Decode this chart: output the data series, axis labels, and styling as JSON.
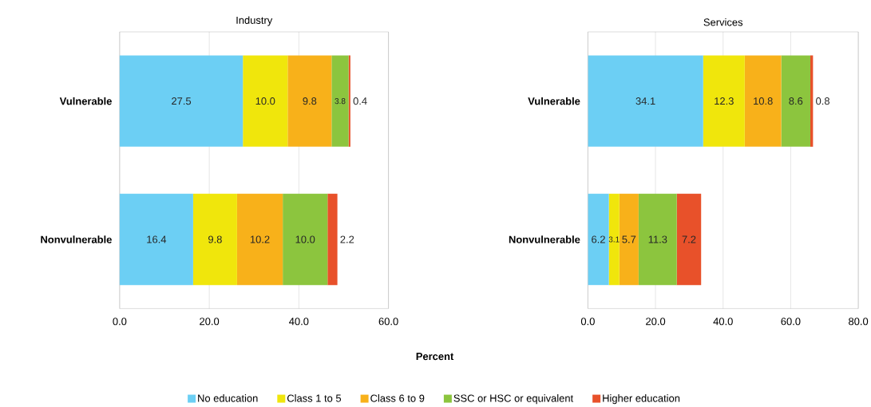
{
  "chart_data": [
    {
      "type": "bar",
      "orientation": "horizontal",
      "stacked": true,
      "title": "Industry",
      "xlabel": "Percent",
      "categories": [
        "Vulnerable",
        "Nonvulnerable"
      ],
      "series": [
        {
          "name": "No education",
          "color": "#6ccff4",
          "values": [
            27.5,
            16.4
          ],
          "value_labels": [
            "27.5",
            "16.4"
          ]
        },
        {
          "name": "Class 1 to 5",
          "color": "#f0e60c",
          "values": [
            10.0,
            9.8
          ],
          "value_labels": [
            "10.0",
            "9.8"
          ]
        },
        {
          "name": "Class 6 to 9",
          "color": "#f8b11a",
          "values": [
            9.8,
            10.2
          ],
          "value_labels": [
            "9.8",
            "10.2"
          ]
        },
        {
          "name": "SSC or HSC or equivalent",
          "color": "#8cc53e",
          "values": [
            3.8,
            10.0
          ],
          "value_labels": [
            "3.8",
            "10.0"
          ]
        },
        {
          "name": "Higher education",
          "color": "#e8512a",
          "values": [
            0.4,
            2.2
          ],
          "value_labels": [
            "0.4",
            "2.2"
          ]
        }
      ],
      "xlim": [
        0,
        60
      ],
      "xticks": [
        {
          "value": 0,
          "label": "0.0"
        },
        {
          "value": 20,
          "label": "20.0"
        },
        {
          "value": 40,
          "label": "40.0"
        },
        {
          "value": 60,
          "label": "60.0"
        }
      ],
      "grid": "x",
      "legend": "bottom"
    },
    {
      "type": "bar",
      "orientation": "horizontal",
      "stacked": true,
      "title": "Services",
      "categories": [
        "Vulnerable",
        "Nonvulnerable"
      ],
      "series": [
        {
          "color": "#6ccff4",
          "values": [
            34.1,
            6.2
          ],
          "value_labels": [
            "34.1",
            "6.2"
          ]
        },
        {
          "color": "#f0e60c",
          "values": [
            12.3,
            3.1
          ],
          "value_labels": [
            "12.3",
            "3.1"
          ]
        },
        {
          "color": "#f8b11a",
          "values": [
            10.8,
            5.7
          ],
          "value_labels": [
            "10.8",
            "5.7"
          ]
        },
        {
          "color": "#8cc53e",
          "values": [
            8.6,
            11.3
          ],
          "value_labels": [
            "8.6",
            "11.3"
          ]
        },
        {
          "color": "#e8512a",
          "values": [
            0.8,
            7.2
          ],
          "value_labels": [
            "0.8",
            "7.2"
          ]
        }
      ],
      "xlim": [
        0,
        80
      ],
      "xticks": [
        {
          "value": 0,
          "label": "0.0"
        },
        {
          "value": 20,
          "label": "20.0"
        },
        {
          "value": 40,
          "label": "40.0"
        },
        {
          "value": 60,
          "label": "60.0"
        },
        {
          "value": 80,
          "label": "80.0"
        }
      ],
      "grid": "x"
    }
  ]
}
